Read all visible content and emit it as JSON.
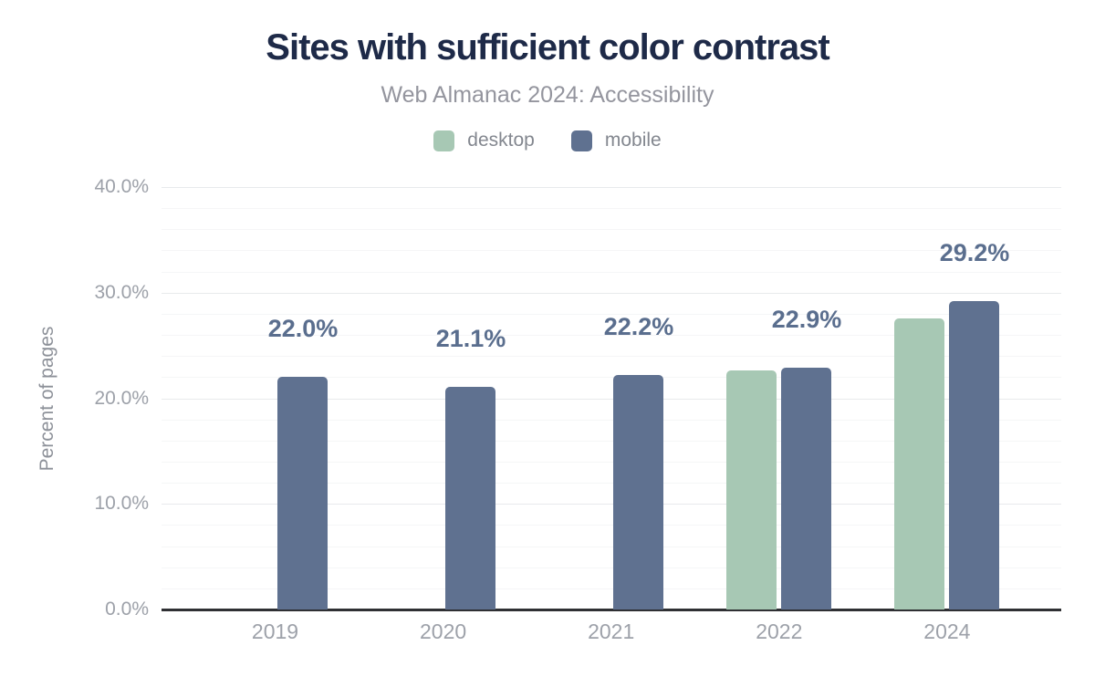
{
  "title": "Sites with sufficient color contrast",
  "subtitle": "Web Almanac 2024: Accessibility",
  "legend": [
    {
      "label": "desktop",
      "color": "#a7c8b4"
    },
    {
      "label": "mobile",
      "color": "#5f7190"
    }
  ],
  "y_axis_title": "Percent of pages",
  "colors": {
    "title": "#1e2a48",
    "subtitle": "#94959e",
    "desktop_bar": "#a7c8b4",
    "mobile_bar": "#5f7190",
    "value_label": "#5a6e8e",
    "tick_label": "#9da1a9",
    "axis_line": "#2f3033",
    "major_gridline": "#e8eaec",
    "minor_gridline": "#f5f6f7"
  },
  "chart_data": {
    "type": "bar",
    "title": "Sites with sufficient color contrast",
    "subtitle": "Web Almanac 2024: Accessibility",
    "ylabel": "Percent of pages",
    "xlabel": "",
    "categories": [
      "2019",
      "2020",
      "2021",
      "2022",
      "2024"
    ],
    "series": [
      {
        "name": "desktop",
        "color": "#a7c8b4",
        "values": [
          null,
          null,
          null,
          22.6,
          27.6
        ]
      },
      {
        "name": "mobile",
        "color": "#5f7190",
        "values": [
          22.0,
          21.1,
          22.2,
          22.9,
          29.2
        ]
      }
    ],
    "value_labels": [
      "22.0%",
      "21.1%",
      "22.2%",
      "22.9%",
      "29.2%"
    ],
    "value_labels_series": "mobile",
    "yticks": [
      {
        "value": 0,
        "label": "0.0%"
      },
      {
        "value": 10,
        "label": "10.0%"
      },
      {
        "value": 20,
        "label": "20.0%"
      },
      {
        "value": 30,
        "label": "30.0%"
      },
      {
        "value": 40,
        "label": "40.0%"
      }
    ],
    "ylim": [
      0,
      40
    ],
    "minor_grid_step": 2,
    "grid": true,
    "legend_position": "top"
  }
}
